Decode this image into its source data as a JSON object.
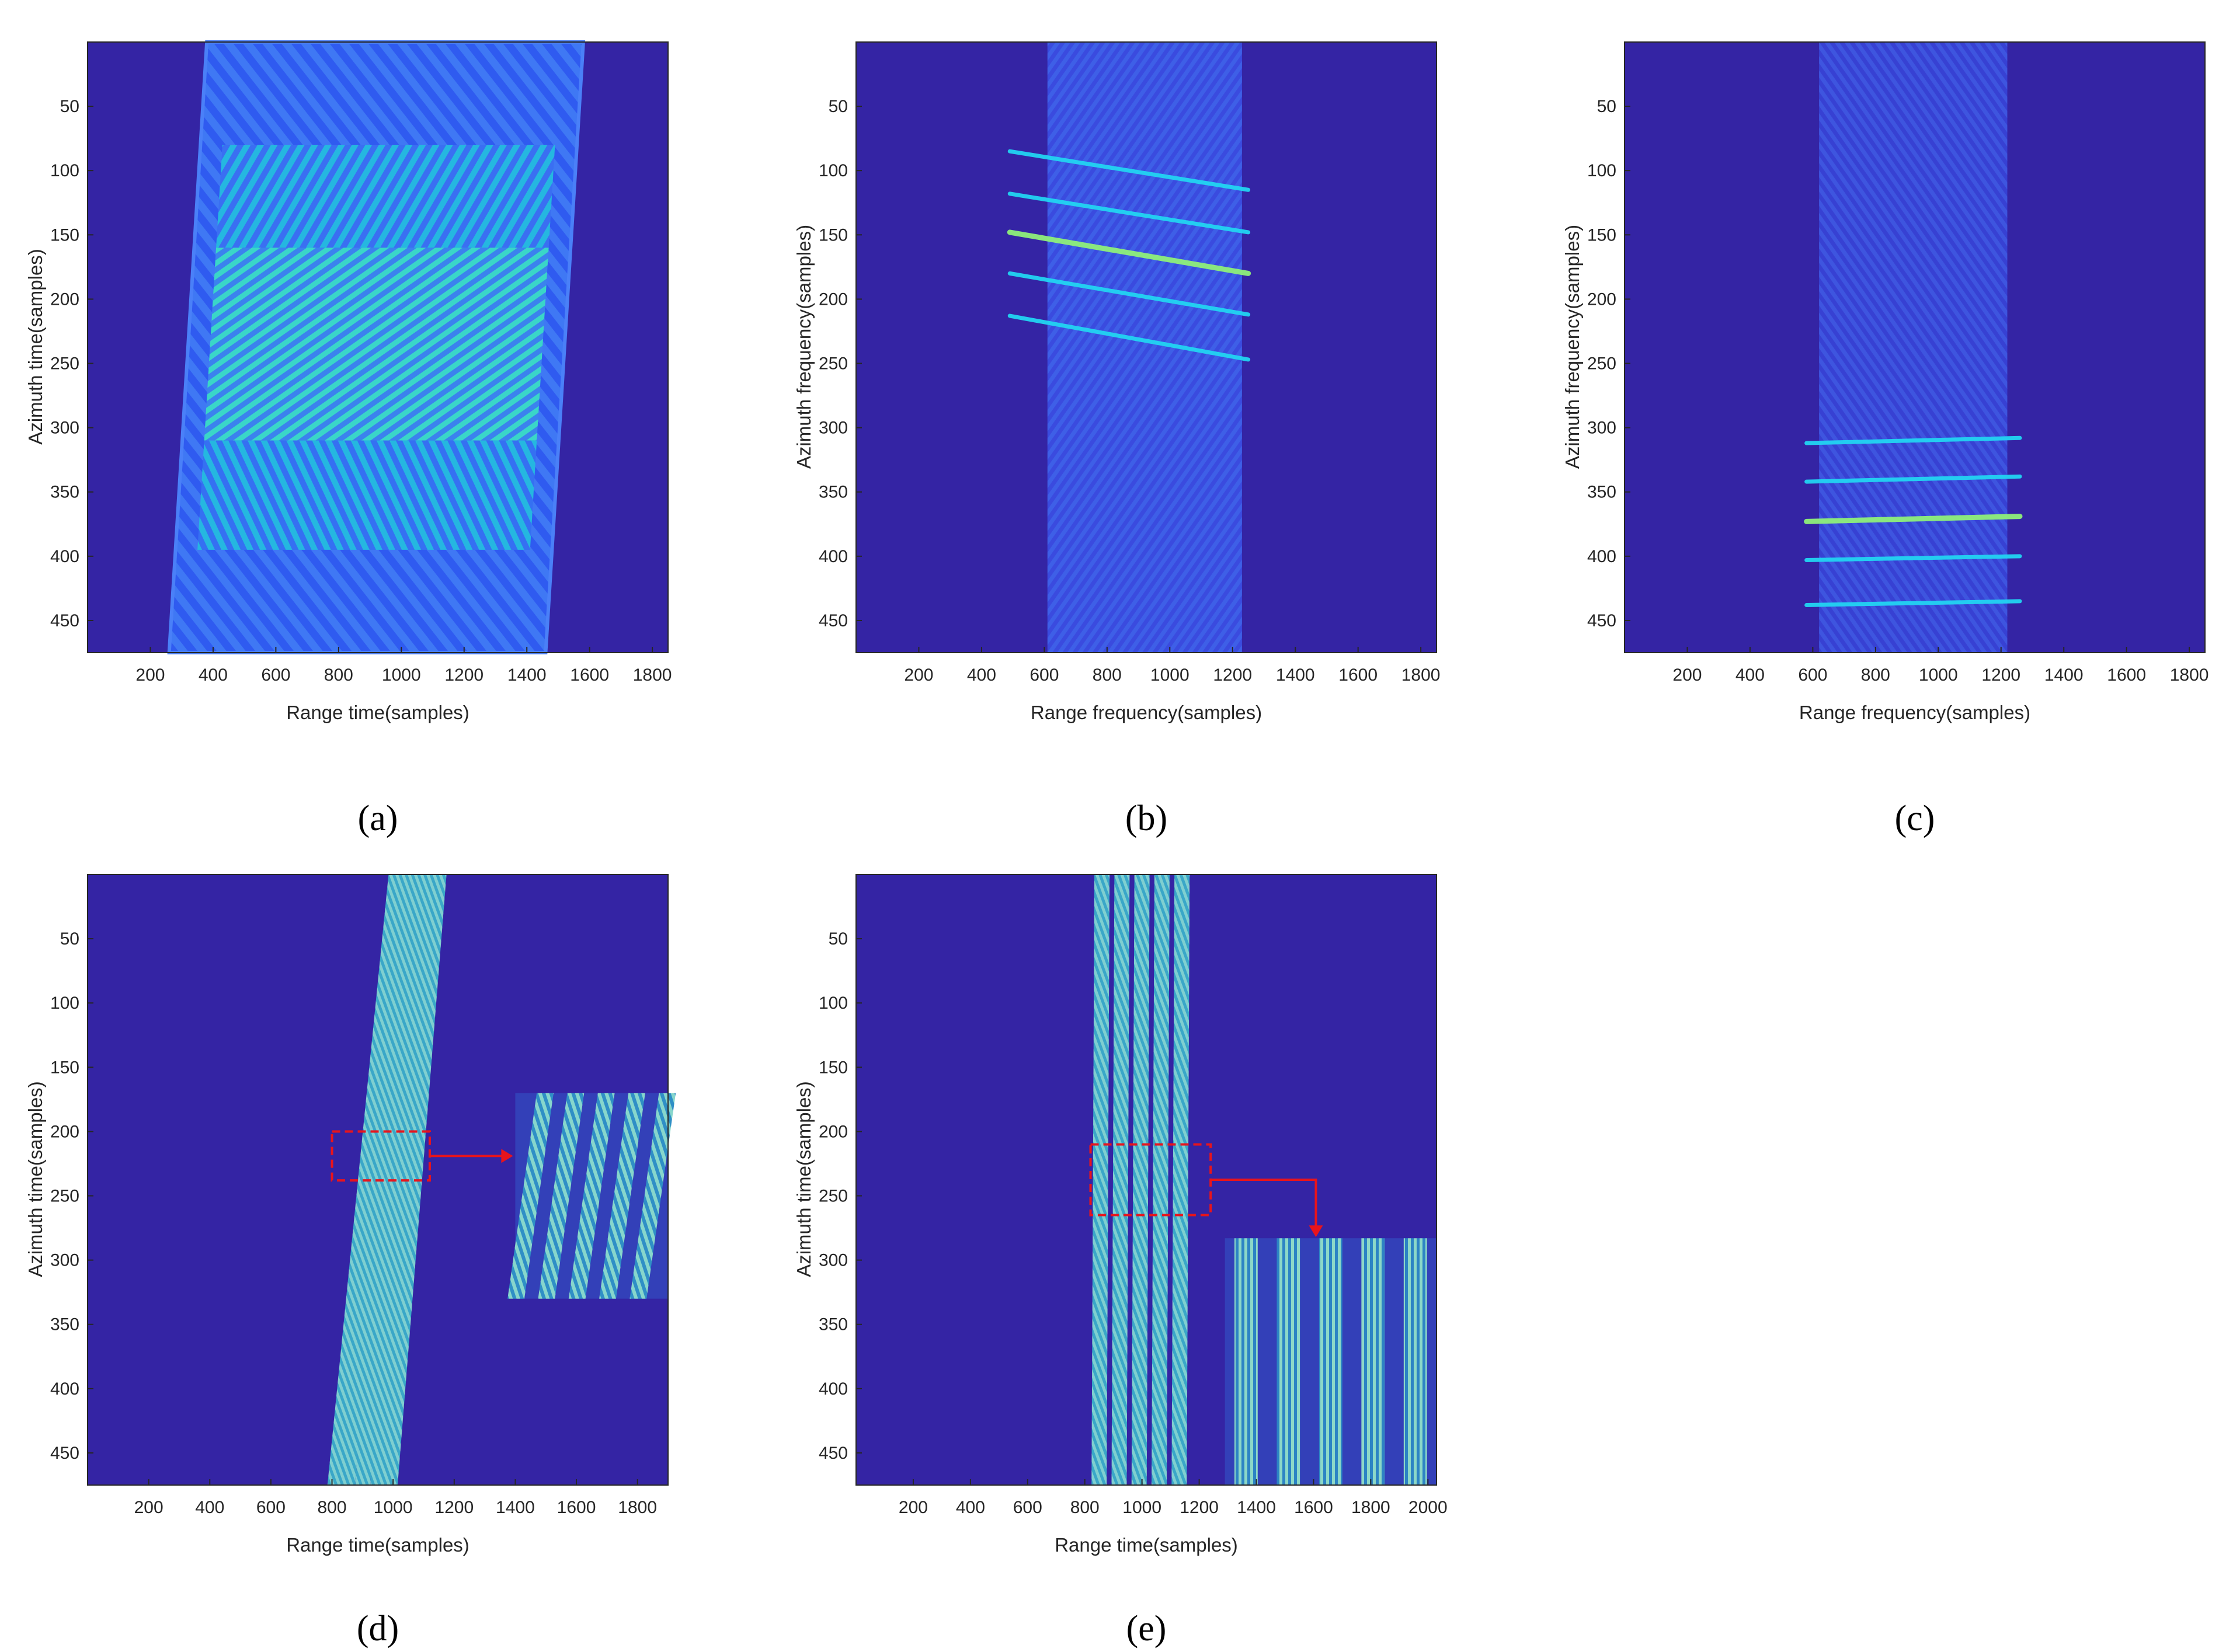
{
  "colors": {
    "background": "#3424a4",
    "stripe_a": "#2f5bf0",
    "stripe_b": "#25b7e0",
    "band_bright": "#3ad6c8",
    "line_cyan": "#22d4f2",
    "line_green": "#8ff07a",
    "zoom_box": "#e8141c"
  },
  "chart_data": [
    {
      "id": "a",
      "type": "heatmap",
      "caption": "(a)",
      "xlabel": "Range time(samples)",
      "ylabel": "Azimuth time(samples)",
      "xlim": [
        0,
        1850
      ],
      "ylim": [
        475,
        0
      ],
      "xticks": [
        200,
        400,
        600,
        800,
        1000,
        1200,
        1400,
        1600,
        1800
      ],
      "yticks": [
        50,
        100,
        150,
        200,
        250,
        300,
        350,
        400,
        450
      ],
      "feature": {
        "kind": "skewed-block",
        "top_left": [
          380,
          0
        ],
        "top_right": [
          1580,
          0
        ],
        "bottom_left": [
          260,
          475
        ],
        "bottom_right": [
          1460,
          475
        ],
        "inner_bands": [
          [
            80,
            160
          ],
          [
            160,
            310
          ],
          [
            310,
            395
          ]
        ]
      }
    },
    {
      "id": "b",
      "type": "heatmap",
      "caption": "(b)",
      "xlabel": "Range frequency(samples)",
      "ylabel": "Azimuth frequency(samples)",
      "xlim": [
        0,
        1850
      ],
      "ylim": [
        475,
        0
      ],
      "xticks": [
        200,
        400,
        600,
        800,
        1000,
        1200,
        1400,
        1600,
        1800
      ],
      "yticks": [
        50,
        100,
        150,
        200,
        250,
        300,
        350,
        400,
        450
      ],
      "feature": {
        "kind": "frequency-band",
        "x_range": [
          610,
          1230
        ],
        "lines": [
          {
            "y_start": 85,
            "y_end": 115,
            "bright": false
          },
          {
            "y_start": 118,
            "y_end": 148,
            "bright": false
          },
          {
            "y_start": 148,
            "y_end": 180,
            "bright": true
          },
          {
            "y_start": 180,
            "y_end": 212,
            "bright": false
          },
          {
            "y_start": 213,
            "y_end": 247,
            "bright": false
          }
        ]
      }
    },
    {
      "id": "c",
      "type": "heatmap",
      "caption": "(c)",
      "xlabel": "Range frequency(samples)",
      "ylabel": "Azimuth frequency(samples)",
      "xlim": [
        0,
        1850
      ],
      "ylim": [
        475,
        0
      ],
      "xticks": [
        200,
        400,
        600,
        800,
        1000,
        1200,
        1400,
        1600,
        1800
      ],
      "yticks": [
        50,
        100,
        150,
        200,
        250,
        300,
        350,
        400,
        450
      ],
      "feature": {
        "kind": "frequency-band",
        "x_range": [
          620,
          1220
        ],
        "lines": [
          {
            "y_start": 312,
            "y_end": 308,
            "bright": false
          },
          {
            "y_start": 342,
            "y_end": 338,
            "bright": false
          },
          {
            "y_start": 373,
            "y_end": 369,
            "bright": true
          },
          {
            "y_start": 403,
            "y_end": 400,
            "bright": false
          },
          {
            "y_start": 438,
            "y_end": 435,
            "bright": false
          }
        ]
      }
    },
    {
      "id": "d",
      "type": "heatmap",
      "caption": "(d)",
      "xlabel": "Range time(samples)",
      "ylabel": "Azimuth time(samples)",
      "xlim": [
        0,
        1900
      ],
      "ylim": [
        475,
        0
      ],
      "xticks": [
        200,
        400,
        600,
        800,
        1000,
        1200,
        1400,
        1600,
        1800
      ],
      "yticks": [
        50,
        100,
        150,
        200,
        250,
        300,
        350,
        400,
        450
      ],
      "feature": {
        "kind": "target-tracks",
        "tracks": [
          {
            "x_top": 1010,
            "x_bottom": 810
          },
          {
            "x_top": 1040,
            "x_bottom": 850
          },
          {
            "x_top": 1080,
            "x_bottom": 900
          },
          {
            "x_top": 1110,
            "x_bottom": 950
          },
          {
            "x_top": 1150,
            "x_bottom": 990
          }
        ],
        "zoom_box": {
          "x": [
            800,
            1120
          ],
          "y": [
            200,
            238
          ]
        },
        "inset": {
          "x": [
            1400,
            1900
          ],
          "y": [
            170,
            330
          ],
          "slant": 25
        }
      }
    },
    {
      "id": "e",
      "type": "heatmap",
      "caption": "(e)",
      "xlabel": "Range time(samples)",
      "ylabel": "Azimuth time(samples)",
      "xlim": [
        0,
        2030
      ],
      "ylim": [
        475,
        0
      ],
      "xticks": [
        200,
        400,
        600,
        800,
        1000,
        1200,
        1400,
        1600,
        1800,
        2000
      ],
      "yticks": [
        50,
        100,
        150,
        200,
        250,
        300,
        350,
        400,
        450
      ],
      "feature": {
        "kind": "target-tracks",
        "tracks": [
          {
            "x_top": 860,
            "x_bottom": 850
          },
          {
            "x_top": 930,
            "x_bottom": 920
          },
          {
            "x_top": 1000,
            "x_bottom": 990
          },
          {
            "x_top": 1070,
            "x_bottom": 1060
          },
          {
            "x_top": 1140,
            "x_bottom": 1130
          }
        ],
        "zoom_box": {
          "x": [
            820,
            1240
          ],
          "y": [
            210,
            265
          ]
        },
        "inset": {
          "x": [
            1290,
            2030
          ],
          "y": [
            283,
            475
          ],
          "slant": 0
        }
      }
    }
  ]
}
